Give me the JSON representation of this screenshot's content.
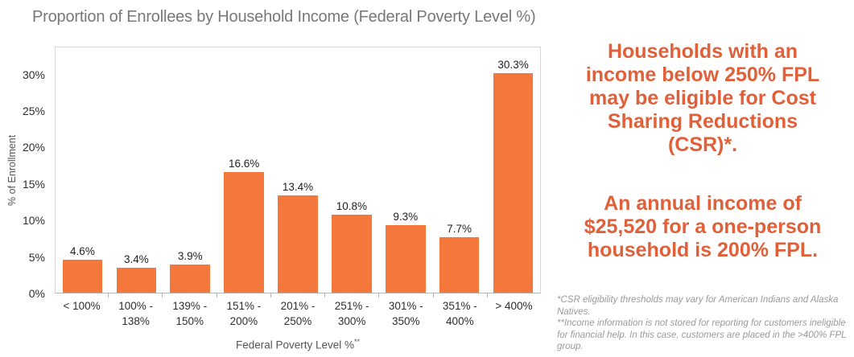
{
  "title": "Proportion of Enrollees by Household Income (Federal Poverty Level %)",
  "chart_data": {
    "type": "bar",
    "title": "Proportion of Enrollees by Household Income (Federal Poverty Level %)",
    "ylabel": "% of Enrollment",
    "xlabel": "Federal Poverty Level %",
    "xlabel_footnote_marker": "**",
    "ylim": [
      0,
      33.8
    ],
    "grid": false,
    "legend": false,
    "ytick_values": [
      0,
      5,
      10,
      15,
      20,
      25,
      30
    ],
    "ytick_labels": [
      "0%",
      "5%",
      "10%",
      "15%",
      "20%",
      "25%",
      "30%"
    ],
    "categories": [
      "< 100%",
      "100% -\n138%",
      "139% -\n150%",
      "151% -\n200%",
      "201% -\n250%",
      "251% -\n300%",
      "301% -\n350%",
      "351% -\n400%",
      "> 400%"
    ],
    "values": [
      4.6,
      3.4,
      3.9,
      16.6,
      13.4,
      10.8,
      9.3,
      7.7,
      30.3
    ],
    "value_labels": [
      "4.6%",
      "3.4%",
      "3.9%",
      "16.6%",
      "13.4%",
      "10.8%",
      "9.3%",
      "7.7%",
      "30.3%"
    ],
    "bar_color": "#F4783C"
  },
  "callouts": {
    "csr": "Households with an\nincome below 250% FPL\nmay be eligible for Cost\nSharing Reductions\n(CSR)*.",
    "income": "An annual income of\n$25,520 for a one-person\nhousehold is 200% FPL."
  },
  "footnotes": [
    "*CSR eligibility thresholds may vary for American Indians and Alaska Natives.",
    "**Income information is not stored for reporting for customers ineligible for financial help. In this case, customers are placed in the >400% FPL group."
  ],
  "colors": {
    "bar": "#F4783C",
    "accent_text": "#E0603A",
    "title_text": "#787878",
    "axis_text": "#2E2E2E",
    "axis_title_text": "#555555",
    "footnote_text": "#9A9A9A",
    "plot_border": "#D9D9D9",
    "axis_line": "#B5B5B5"
  }
}
